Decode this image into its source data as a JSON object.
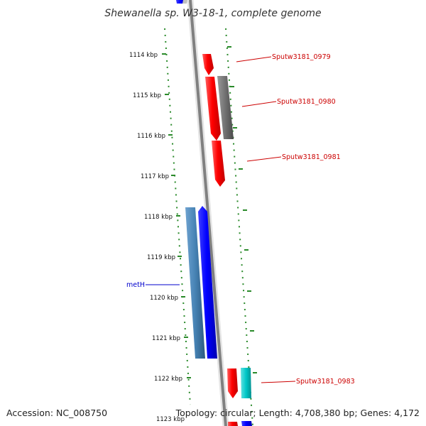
{
  "title": "Shewanella sp. W3-18-1, complete genome",
  "footer": {
    "accession": "Accession: NC_008750",
    "summary": "Topology: circular; Length: 4,708,380 bp; Genes: 4,172"
  },
  "ticks": [
    "1114 kbp",
    "1115 kbp",
    "1116 kbp",
    "1117 kbp",
    "1118 kbp",
    "1119 kbp",
    "1120 kbp",
    "1121 kbp",
    "1122 kbp",
    "1123 kbp"
  ],
  "gene_labels": [
    {
      "text": "Sputw3181_0979",
      "color": "#cc0000"
    },
    {
      "text": "Sputw3181_0980",
      "color": "#cc0000"
    },
    {
      "text": "Sputw3181_0981",
      "color": "#cc0000"
    },
    {
      "text": "metH",
      "color": "#0000cc"
    },
    {
      "text": "Sputw3181_0983",
      "color": "#cc0000"
    }
  ],
  "colors": {
    "backbone": "#808080",
    "scale_dots": "#2a8a2a",
    "forward_gene": "#ff0000",
    "reverse_gene": "#0000ff",
    "gene_grey": "#707070",
    "gene_steelblue": "#4682b4",
    "gene_cyan": "#00c8c8"
  }
}
